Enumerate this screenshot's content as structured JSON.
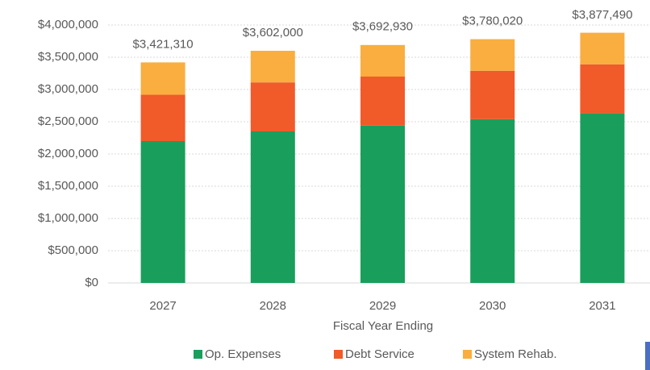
{
  "chart_data": {
    "type": "stacked_bar",
    "x_label": "Fiscal Year Ending",
    "categories": [
      "2027",
      "2028",
      "2029",
      "2030",
      "2031"
    ],
    "series": [
      {
        "name": "Op. Expenses",
        "color": "#1a9e5c",
        "values": [
          2200000,
          2350000,
          2440000,
          2540000,
          2630000
        ]
      },
      {
        "name": "Debt Service",
        "color": "#f15a29",
        "values": [
          720000,
          760000,
          760000,
          750000,
          760000
        ]
      },
      {
        "name": "System Rehab.",
        "color": "#f9ae3f",
        "values": [
          500000,
          490000,
          490000,
          490000,
          490000
        ]
      }
    ],
    "totals": [
      3421310,
      3602000,
      3692930,
      3780020,
      3877490
    ],
    "total_labels": [
      "$3,421,310",
      "$3,602,000",
      "$3,692,930",
      "$3,780,020",
      "$3,877,490"
    ],
    "ylim": [
      0,
      4000000
    ],
    "yticks": [
      {
        "value": 0,
        "label": "$0"
      },
      {
        "value": 500000,
        "label": "$500,000"
      },
      {
        "value": 1000000,
        "label": "$1,000,000"
      },
      {
        "value": 1500000,
        "label": "$1,500,000"
      },
      {
        "value": 2000000,
        "label": "$2,000,000"
      },
      {
        "value": 2500000,
        "label": "$2,500,000"
      },
      {
        "value": 3000000,
        "label": "$3,000,000"
      },
      {
        "value": 3500000,
        "label": "$3,500,000"
      },
      {
        "value": 4000000,
        "label": "$4,000,000"
      }
    ],
    "grid": true,
    "legend": "bottom"
  }
}
